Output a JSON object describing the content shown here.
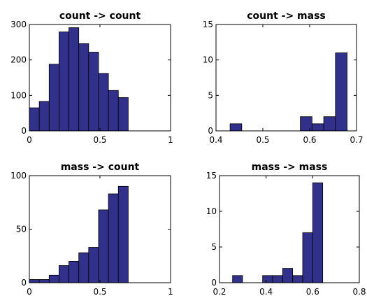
{
  "colors": {
    "bar_fill": "#31308a",
    "bar_edge": "#000000",
    "axes": "#000000"
  },
  "chart_data": [
    {
      "type": "bar",
      "title": "count -> count",
      "xlabel": "",
      "ylabel": "",
      "xlim": [
        0,
        1
      ],
      "ylim": [
        0,
        300
      ],
      "xticks": [
        0,
        0.5,
        1
      ],
      "xtick_labels": [
        "0",
        "0.5",
        "1"
      ],
      "yticks": [
        0,
        100,
        200,
        300
      ],
      "ytick_labels": [
        "0",
        "100",
        "200",
        "300"
      ],
      "bins": [
        {
          "start": 0.0,
          "end": 0.07,
          "value": 65
        },
        {
          "start": 0.07,
          "end": 0.14,
          "value": 83
        },
        {
          "start": 0.14,
          "end": 0.21,
          "value": 188
        },
        {
          "start": 0.21,
          "end": 0.28,
          "value": 279
        },
        {
          "start": 0.28,
          "end": 0.35,
          "value": 291
        },
        {
          "start": 0.35,
          "end": 0.42,
          "value": 246
        },
        {
          "start": 0.42,
          "end": 0.49,
          "value": 222
        },
        {
          "start": 0.49,
          "end": 0.56,
          "value": 162
        },
        {
          "start": 0.56,
          "end": 0.63,
          "value": 114
        },
        {
          "start": 0.63,
          "end": 0.7,
          "value": 94
        }
      ]
    },
    {
      "type": "bar",
      "title": "count -> mass",
      "xlabel": "",
      "ylabel": "",
      "xlim": [
        0.4,
        0.7
      ],
      "ylim": [
        0,
        15
      ],
      "xticks": [
        0.4,
        0.5,
        0.6,
        0.7
      ],
      "xtick_labels": [
        "0.4",
        "0.5",
        "0.6",
        "0.7"
      ],
      "yticks": [
        0,
        5,
        10,
        15
      ],
      "ytick_labels": [
        "0",
        "5",
        "10",
        "15"
      ],
      "bins": [
        {
          "start": 0.43,
          "end": 0.455,
          "value": 1
        },
        {
          "start": 0.455,
          "end": 0.48,
          "value": 0
        },
        {
          "start": 0.48,
          "end": 0.505,
          "value": 0
        },
        {
          "start": 0.505,
          "end": 0.53,
          "value": 0
        },
        {
          "start": 0.53,
          "end": 0.555,
          "value": 0
        },
        {
          "start": 0.555,
          "end": 0.58,
          "value": 0
        },
        {
          "start": 0.58,
          "end": 0.605,
          "value": 2
        },
        {
          "start": 0.605,
          "end": 0.63,
          "value": 1
        },
        {
          "start": 0.63,
          "end": 0.655,
          "value": 2
        },
        {
          "start": 0.655,
          "end": 0.68,
          "value": 11
        }
      ]
    },
    {
      "type": "bar",
      "title": "mass -> count",
      "xlabel": "",
      "ylabel": "",
      "xlim": [
        0,
        1
      ],
      "ylim": [
        0,
        100
      ],
      "xticks": [
        0,
        0.5,
        1
      ],
      "xtick_labels": [
        "0",
        "0.5",
        "1"
      ],
      "yticks": [
        0,
        50,
        100
      ],
      "ytick_labels": [
        "0",
        "50",
        "100"
      ],
      "bins": [
        {
          "start": 0.0,
          "end": 0.07,
          "value": 3
        },
        {
          "start": 0.07,
          "end": 0.14,
          "value": 3
        },
        {
          "start": 0.14,
          "end": 0.21,
          "value": 7
        },
        {
          "start": 0.21,
          "end": 0.28,
          "value": 16
        },
        {
          "start": 0.28,
          "end": 0.35,
          "value": 20
        },
        {
          "start": 0.35,
          "end": 0.42,
          "value": 28
        },
        {
          "start": 0.42,
          "end": 0.49,
          "value": 33
        },
        {
          "start": 0.49,
          "end": 0.56,
          "value": 68
        },
        {
          "start": 0.56,
          "end": 0.63,
          "value": 83
        },
        {
          "start": 0.63,
          "end": 0.7,
          "value": 90
        }
      ]
    },
    {
      "type": "bar",
      "title": "mass -> mass",
      "xlabel": "",
      "ylabel": "",
      "xlim": [
        0.2,
        0.8
      ],
      "ylim": [
        0,
        15
      ],
      "xticks": [
        0.2,
        0.4,
        0.6,
        0.8
      ],
      "xtick_labels": [
        "0.2",
        "0.4",
        "0.6",
        "0.8"
      ],
      "yticks": [
        0,
        5,
        10,
        15
      ],
      "ytick_labels": [
        "0",
        "5",
        "10",
        "15"
      ],
      "bins": [
        {
          "start": 0.256,
          "end": 0.299,
          "value": 1
        },
        {
          "start": 0.299,
          "end": 0.342,
          "value": 0
        },
        {
          "start": 0.342,
          "end": 0.385,
          "value": 0
        },
        {
          "start": 0.385,
          "end": 0.428,
          "value": 1
        },
        {
          "start": 0.428,
          "end": 0.471,
          "value": 1
        },
        {
          "start": 0.471,
          "end": 0.514,
          "value": 2
        },
        {
          "start": 0.514,
          "end": 0.557,
          "value": 1
        },
        {
          "start": 0.557,
          "end": 0.6,
          "value": 7
        },
        {
          "start": 0.6,
          "end": 0.643,
          "value": 14
        }
      ]
    }
  ]
}
